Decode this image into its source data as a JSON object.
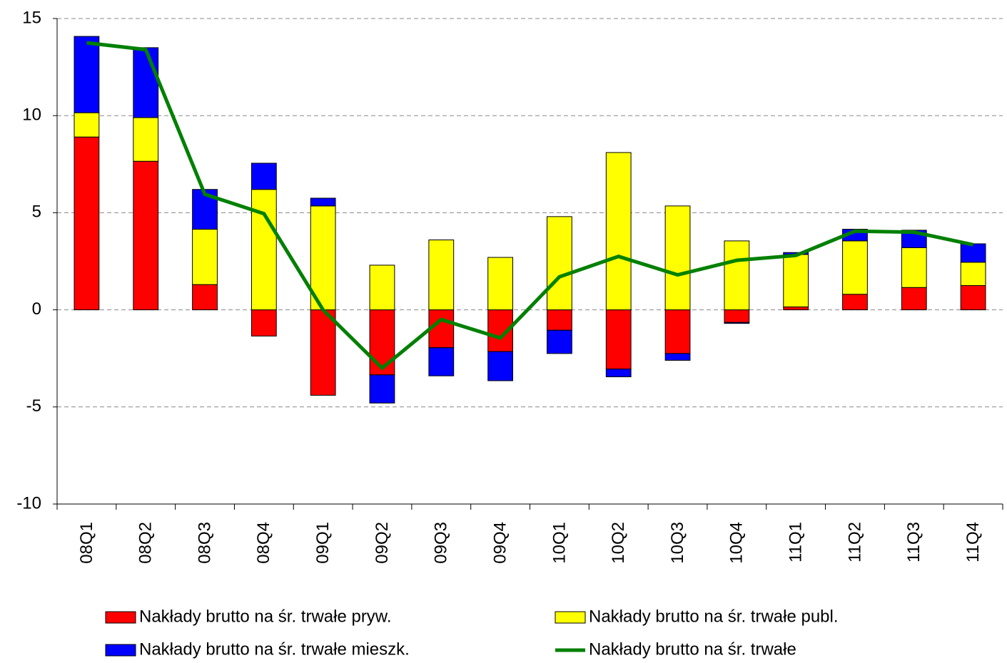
{
  "chart_data": {
    "type": "bar",
    "stacked": true,
    "categories": [
      "08Q1",
      "08Q2",
      "08Q3",
      "08Q4",
      "09Q1",
      "09Q2",
      "09Q3",
      "09Q4",
      "10Q1",
      "10Q2",
      "10Q3",
      "10Q4",
      "11Q1",
      "11Q2",
      "11Q3",
      "11Q4"
    ],
    "series": [
      {
        "name": "Nakłady brutto na śr. trwałe pryw.",
        "color": "#ff0000",
        "type": "bar",
        "values": [
          8.9,
          7.65,
          1.3,
          -1.35,
          -4.4,
          -3.35,
          -1.95,
          -2.15,
          -1.05,
          -3.05,
          -2.25,
          -0.65,
          0.15,
          0.8,
          1.15,
          1.25
        ]
      },
      {
        "name": "Nakłady brutto na śr. trwałe publ.",
        "color": "#ffff00",
        "type": "bar",
        "values": [
          1.25,
          2.25,
          2.85,
          6.2,
          5.35,
          2.3,
          3.6,
          2.7,
          4.8,
          8.1,
          5.35,
          3.55,
          2.7,
          2.75,
          2.05,
          1.2
        ]
      },
      {
        "name": "Nakłady brutto na śr. trwałe mieszk.",
        "color": "#0000ff",
        "type": "bar",
        "values": [
          3.93,
          3.6,
          2.05,
          1.35,
          0.4,
          -1.45,
          -1.45,
          -1.5,
          -1.2,
          -0.4,
          -0.35,
          -0.05,
          0.1,
          0.6,
          0.9,
          0.95
        ]
      },
      {
        "name": "Nakłady brutto na śr. trwałe",
        "color": "#008000",
        "type": "line",
        "values": [
          13.75,
          13.4,
          5.95,
          4.95,
          0,
          -3.0,
          -0.5,
          -1.45,
          1.7,
          2.75,
          1.8,
          2.55,
          2.8,
          4.05,
          4.0,
          3.35
        ]
      }
    ],
    "ylim": [
      -10,
      15
    ],
    "yticks": [
      -10,
      -5,
      0,
      5,
      10,
      15
    ],
    "grid": true,
    "legend": "bottom"
  }
}
